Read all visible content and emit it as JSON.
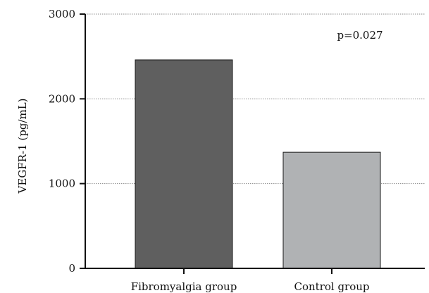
{
  "chart_data": {
    "type": "bar",
    "categories": [
      "Fibromyalgia group",
      "Control group"
    ],
    "values": [
      2460,
      1370
    ],
    "colors": [
      "#5f5f5f",
      "#b0b2b4"
    ],
    "edge_color": "#1a1a1a",
    "ylabel": "VEGFR-1 (pg/mL)",
    "xlabel": "",
    "ylim": [
      0,
      3000
    ],
    "yticks": [
      0,
      1000,
      2000,
      3000
    ],
    "ytick_labels": [
      "0",
      "1000",
      "2000",
      "3000"
    ],
    "grid": true,
    "grid_style": "dotted horizontal",
    "annotation": "p=0.027"
  }
}
